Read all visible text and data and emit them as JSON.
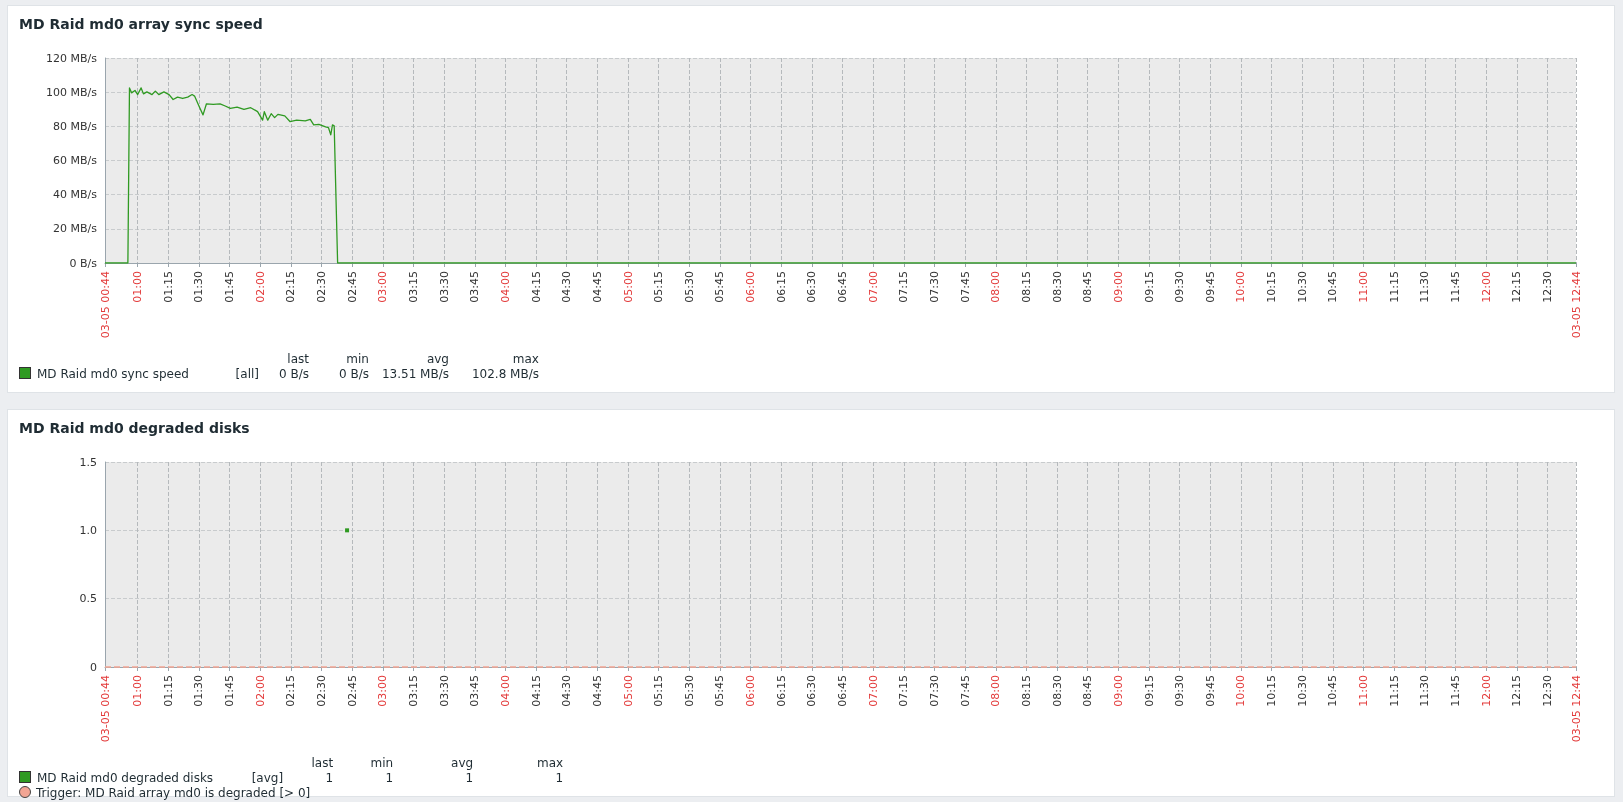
{
  "chart_data": [
    {
      "type": "line",
      "title": "MD Raid md0 array sync speed",
      "grid": true,
      "legend": "bottom left",
      "marker": "none",
      "xlim": [
        0.7333333,
        12.7333333
      ],
      "ylim": [
        0,
        120
      ],
      "yticks": [
        {
          "value": 0,
          "label": "0 B/s"
        },
        {
          "value": 20,
          "label": "20 MB/s"
        },
        {
          "value": 40,
          "label": "40 MB/s"
        },
        {
          "value": 60,
          "label": "60 MB/s"
        },
        {
          "value": 80,
          "label": "80 MB/s"
        },
        {
          "value": 100,
          "label": "100 MB/s"
        },
        {
          "value": 120,
          "label": "120 MB/s"
        }
      ],
      "xticks": [
        {
          "value": 0.7333333,
          "label": "03-05 00:44"
        },
        {
          "value": 1,
          "label": "01:00"
        },
        {
          "value": 1.25,
          "label": "01:15"
        },
        {
          "value": 1.5,
          "label": "01:30"
        },
        {
          "value": 1.75,
          "label": "01:45"
        },
        {
          "value": 2,
          "label": "02:00"
        },
        {
          "value": 2.25,
          "label": "02:15"
        },
        {
          "value": 2.5,
          "label": "02:30"
        },
        {
          "value": 2.75,
          "label": "02:45"
        },
        {
          "value": 3,
          "label": "03:00"
        },
        {
          "value": 3.25,
          "label": "03:15"
        },
        {
          "value": 3.5,
          "label": "03:30"
        },
        {
          "value": 3.75,
          "label": "03:45"
        },
        {
          "value": 4,
          "label": "04:00"
        },
        {
          "value": 4.25,
          "label": "04:15"
        },
        {
          "value": 4.5,
          "label": "04:30"
        },
        {
          "value": 4.75,
          "label": "04:45"
        },
        {
          "value": 5,
          "label": "05:00"
        },
        {
          "value": 5.25,
          "label": "05:15"
        },
        {
          "value": 5.5,
          "label": "05:30"
        },
        {
          "value": 5.75,
          "label": "05:45"
        },
        {
          "value": 6,
          "label": "06:00"
        },
        {
          "value": 6.25,
          "label": "06:15"
        },
        {
          "value": 6.5,
          "label": "06:30"
        },
        {
          "value": 6.75,
          "label": "06:45"
        },
        {
          "value": 7,
          "label": "07:00"
        },
        {
          "value": 7.25,
          "label": "07:15"
        },
        {
          "value": 7.5,
          "label": "07:30"
        },
        {
          "value": 7.75,
          "label": "07:45"
        },
        {
          "value": 8,
          "label": "08:00"
        },
        {
          "value": 8.25,
          "label": "08:15"
        },
        {
          "value": 8.5,
          "label": "08:30"
        },
        {
          "value": 8.75,
          "label": "08:45"
        },
        {
          "value": 9,
          "label": "09:00"
        },
        {
          "value": 9.25,
          "label": "09:15"
        },
        {
          "value": 9.5,
          "label": "09:30"
        },
        {
          "value": 9.75,
          "label": "09:45"
        },
        {
          "value": 10,
          "label": "10:00"
        },
        {
          "value": 10.25,
          "label": "10:15"
        },
        {
          "value": 10.5,
          "label": "10:30"
        },
        {
          "value": 10.75,
          "label": "10:45"
        },
        {
          "value": 11,
          "label": "11:00"
        },
        {
          "value": 11.25,
          "label": "11:15"
        },
        {
          "value": 11.5,
          "label": "11:30"
        },
        {
          "value": 11.75,
          "label": "11:45"
        },
        {
          "value": 12,
          "label": "12:00"
        },
        {
          "value": 12.25,
          "label": "12:15"
        },
        {
          "value": 12.5,
          "label": "12:30"
        },
        {
          "value": 12.7333333,
          "label": "03-05 12:44"
        }
      ],
      "series": [
        {
          "name": "MD Raid md0 sync speed",
          "color": "#2f9a22",
          "x": [
            0.7333333,
            0.92,
            0.933,
            0.95,
            0.978,
            1.0,
            1.028,
            1.047,
            1.075,
            1.117,
            1.144,
            1.172,
            1.214,
            1.256,
            1.289,
            1.325,
            1.367,
            1.408,
            1.444,
            1.464,
            1.506,
            1.533,
            1.561,
            1.617,
            1.672,
            1.714,
            1.756,
            1.811,
            1.867,
            1.922,
            1.978,
            2.019,
            2.033,
            2.061,
            2.089,
            2.117,
            2.144,
            2.2,
            2.242,
            2.297,
            2.367,
            2.408,
            2.436,
            2.478,
            2.533,
            2.556,
            2.575,
            2.589,
            2.603,
            2.631,
            2.7,
            4.0,
            12.7333333
          ],
          "values": [
            0,
            0,
            102.5,
            99.6,
            101,
            98.6,
            102.5,
            99,
            100.2,
            98.6,
            100.6,
            98.6,
            100.2,
            98.6,
            95.7,
            97.1,
            96.3,
            97.1,
            98.6,
            97.7,
            90.9,
            86.7,
            93.2,
            92.8,
            93.2,
            91.9,
            90.5,
            91.3,
            89.9,
            90.9,
            88.6,
            83.6,
            88.6,
            83.6,
            87.4,
            85.1,
            87,
            86.1,
            82.8,
            83.6,
            83.2,
            84.1,
            80.9,
            81.2,
            79.7,
            79.3,
            75,
            80.9,
            80.3,
            0,
            0,
            0,
            0
          ]
        }
      ],
      "annotations": [
        "[all]",
        "last",
        "min",
        "avg",
        "max",
        "0 B/s",
        "0 B/s",
        "13.51 MB/s",
        "102.8 MB/s"
      ]
    },
    {
      "type": "line",
      "title": "MD Raid md0 degraded disks",
      "grid": true,
      "legend": "bottom left",
      "marker": "square",
      "xlim": [
        0.7333333,
        12.7333333
      ],
      "ylim": [
        0,
        1.5
      ],
      "yticks": [
        0,
        0.5,
        {
          "value": 1,
          "label": "1.0"
        },
        1.5
      ],
      "xticks": [
        {
          "value": 0.7333333,
          "label": "03-05 00:44"
        },
        {
          "value": 1,
          "label": "01:00"
        },
        {
          "value": 1.25,
          "label": "01:15"
        },
        {
          "value": 1.5,
          "label": "01:30"
        },
        {
          "value": 1.75,
          "label": "01:45"
        },
        {
          "value": 2,
          "label": "02:00"
        },
        {
          "value": 2.25,
          "label": "02:15"
        },
        {
          "value": 2.5,
          "label": "02:30"
        },
        {
          "value": 2.75,
          "label": "02:45"
        },
        {
          "value": 3,
          "label": "03:00"
        },
        {
          "value": 3.25,
          "label": "03:15"
        },
        {
          "value": 3.5,
          "label": "03:30"
        },
        {
          "value": 3.75,
          "label": "03:45"
        },
        {
          "value": 4,
          "label": "04:00"
        },
        {
          "value": 4.25,
          "label": "04:15"
        },
        {
          "value": 4.5,
          "label": "04:30"
        },
        {
          "value": 4.75,
          "label": "04:45"
        },
        {
          "value": 5,
          "label": "05:00"
        },
        {
          "value": 5.25,
          "label": "05:15"
        },
        {
          "value": 5.5,
          "label": "05:30"
        },
        {
          "value": 5.75,
          "label": "05:45"
        },
        {
          "value": 6,
          "label": "06:00"
        },
        {
          "value": 6.25,
          "label": "06:15"
        },
        {
          "value": 6.5,
          "label": "06:30"
        },
        {
          "value": 6.75,
          "label": "06:45"
        },
        {
          "value": 7,
          "label": "07:00"
        },
        {
          "value": 7.25,
          "label": "07:15"
        },
        {
          "value": 7.5,
          "label": "07:30"
        },
        {
          "value": 7.75,
          "label": "07:45"
        },
        {
          "value": 8,
          "label": "08:00"
        },
        {
          "value": 8.25,
          "label": "08:15"
        },
        {
          "value": 8.5,
          "label": "08:30"
        },
        {
          "value": 8.75,
          "label": "08:45"
        },
        {
          "value": 9,
          "label": "09:00"
        },
        {
          "value": 9.25,
          "label": "09:15"
        },
        {
          "value": 9.5,
          "label": "09:30"
        },
        {
          "value": 9.75,
          "label": "09:45"
        },
        {
          "value": 10,
          "label": "10:00"
        },
        {
          "value": 10.25,
          "label": "10:15"
        },
        {
          "value": 10.5,
          "label": "10:30"
        },
        {
          "value": 10.75,
          "label": "10:45"
        },
        {
          "value": 11,
          "label": "11:00"
        },
        {
          "value": 11.25,
          "label": "11:15"
        },
        {
          "value": 11.5,
          "label": "11:30"
        },
        {
          "value": 11.75,
          "label": "11:45"
        },
        {
          "value": 12,
          "label": "12:00"
        },
        {
          "value": 12.25,
          "label": "12:15"
        },
        {
          "value": 12.5,
          "label": "12:30"
        },
        {
          "value": 12.7333333,
          "label": "03-05 12:44"
        }
      ],
      "series": [
        {
          "name": "MD Raid md0 degraded disks",
          "color": "#2f9a22",
          "x": [
            2.708
          ],
          "values": [
            1
          ]
        }
      ],
      "ref_lines": [
        {
          "axis": "y",
          "value": 0,
          "label": "Trigger: MD Raid array md0 is degraded [> 0]",
          "color": "#f2a594",
          "line_style": "dashed"
        }
      ],
      "annotations": [
        "[avg]",
        "last",
        "min",
        "avg",
        "max",
        "1",
        "1",
        "1",
        "1"
      ]
    }
  ]
}
